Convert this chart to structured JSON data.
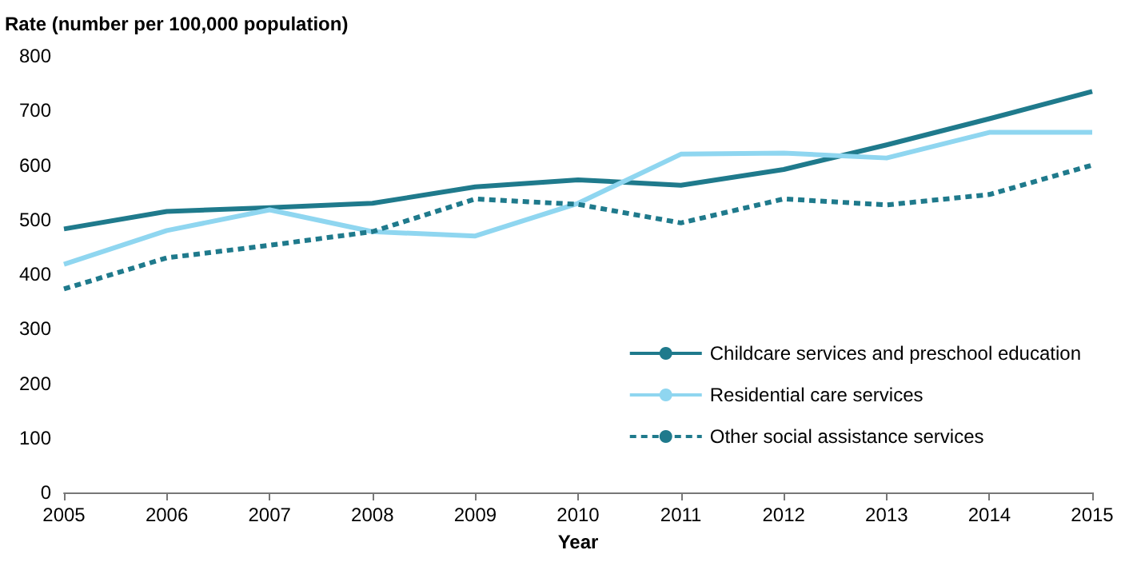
{
  "chart_data": {
    "type": "line",
    "ylabel": "Rate (number per 100,000 population)",
    "xlabel": "Year",
    "categories": [
      "2005",
      "2006",
      "2007",
      "2008",
      "2009",
      "2010",
      "2011",
      "2012",
      "2013",
      "2014",
      "2015"
    ],
    "series": [
      {
        "name": "Childcare services and preschool education",
        "color": "#1f7a8c",
        "line_style": "solid",
        "values": [
          483,
          515,
          522,
          530,
          560,
          573,
          563,
          592,
          637,
          685,
          735
        ]
      },
      {
        "name": "Residential care services",
        "color": "#8fd6f0",
        "line_style": "solid",
        "values": [
          418,
          480,
          518,
          478,
          470,
          530,
          620,
          622,
          613,
          660,
          660
        ]
      },
      {
        "name": "Other social assistance services",
        "color": "#1f7a8c",
        "line_style": "dashed",
        "values": [
          373,
          430,
          453,
          478,
          538,
          528,
          494,
          538,
          527,
          546,
          600
        ]
      }
    ],
    "ylim": [
      0,
      800
    ],
    "yticks": [
      0,
      100,
      200,
      300,
      400,
      500,
      600,
      700,
      800
    ],
    "grid": false,
    "legend": "bottom right",
    "marker": "none"
  }
}
